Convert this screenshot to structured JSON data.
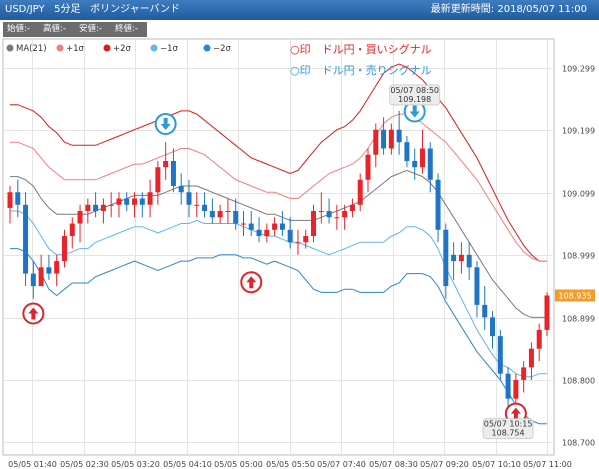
{
  "header": {
    "symbol": "USD/JPY",
    "interval": "5分足",
    "indicator": "ボリンジャーバンド",
    "updated_label": "最新更新時間:",
    "updated_value": "2018/05/07 11:00"
  },
  "quote": {
    "open_label": "始値:-",
    "high_label": "高値:-",
    "low_label": "安値:-",
    "close_label": "終値:-"
  },
  "colors": {
    "up": "#e8232a",
    "down": "#1f74c4",
    "ma": "#7a7a7a",
    "sigma1": "#f08080",
    "sigma2": "#dd1b1b",
    "minus1": "#62b4ec",
    "minus2": "#2f86d0",
    "buy": "#e0242c",
    "sell": "#2a9ad8",
    "price_tag": "#f39d28"
  },
  "notes": {
    "buy": "○印　ドル円・買いシグナル",
    "sell": "○印　ドル円・売りシグナル"
  },
  "chart_data": {
    "type": "candlestick",
    "legend": [
      "MA(21)",
      "+1σ",
      "+2σ",
      "−1σ",
      "−2σ"
    ],
    "ylim": [
      108.68,
      109.345
    ],
    "yticks": [
      108.7,
      108.8,
      108.899,
      108.999,
      109.099,
      109.199,
      109.299
    ],
    "ytick_labels": [
      "108.700",
      "108.800",
      "108.899",
      "108.999",
      "109.099",
      "109.199",
      "109.299"
    ],
    "xtick_labels": [
      "05/05 01:40",
      "05/05 02:30",
      "05/05 03:20",
      "05/05 04:10",
      "05/05 05:00",
      "05/05 05:50",
      "05/07 07:40",
      "05/07 08:30",
      "05/07 09:20",
      "05/07 10:10",
      "05/07 11:00"
    ],
    "last_price": "108.935",
    "candles": [
      [
        109.075,
        109.11,
        109.05,
        109.1
      ],
      [
        109.1,
        109.12,
        109.06,
        109.08
      ],
      [
        109.08,
        109.1,
        108.95,
        108.97
      ],
      [
        108.97,
        108.99,
        108.93,
        108.95
      ],
      [
        108.95,
        109.0,
        108.95,
        108.98
      ],
      [
        108.98,
        109.0,
        108.96,
        108.97
      ],
      [
        108.97,
        109.0,
        108.95,
        108.99
      ],
      [
        108.99,
        109.04,
        108.98,
        109.03
      ],
      [
        109.03,
        109.06,
        109.01,
        109.05
      ],
      [
        109.05,
        109.08,
        109.02,
        109.07
      ],
      [
        109.07,
        109.09,
        109.05,
        109.08
      ],
      [
        109.08,
        109.1,
        109.06,
        109.07
      ],
      [
        109.07,
        109.09,
        109.05,
        109.08
      ],
      [
        109.08,
        109.1,
        109.06,
        109.08
      ],
      [
        109.08,
        109.1,
        109.06,
        109.09
      ],
      [
        109.09,
        109.1,
        109.07,
        109.08
      ],
      [
        109.08,
        109.1,
        109.06,
        109.09
      ],
      [
        109.09,
        109.1,
        109.06,
        109.08
      ],
      [
        109.08,
        109.12,
        109.06,
        109.1
      ],
      [
        109.1,
        109.15,
        109.08,
        109.14
      ],
      [
        109.14,
        109.18,
        109.12,
        109.15
      ],
      [
        109.15,
        109.17,
        109.1,
        109.11
      ],
      [
        109.11,
        109.13,
        109.08,
        109.1
      ],
      [
        109.1,
        109.12,
        109.06,
        109.08
      ],
      [
        109.08,
        109.1,
        109.06,
        109.08
      ],
      [
        109.08,
        109.1,
        109.06,
        109.07
      ],
      [
        109.07,
        109.09,
        109.05,
        109.06
      ],
      [
        109.06,
        109.08,
        109.05,
        109.07
      ],
      [
        109.07,
        109.09,
        109.05,
        109.07
      ],
      [
        109.07,
        109.09,
        109.04,
        109.05
      ],
      [
        109.05,
        109.07,
        109.03,
        109.05
      ],
      [
        109.05,
        109.07,
        109.03,
        109.04
      ],
      [
        109.04,
        109.06,
        109.02,
        109.03
      ],
      [
        109.03,
        109.05,
        109.02,
        109.04
      ],
      [
        109.04,
        109.06,
        109.03,
        109.05
      ],
      [
        109.05,
        109.07,
        109.03,
        109.04
      ],
      [
        109.04,
        109.06,
        109.01,
        109.02
      ],
      [
        109.02,
        109.04,
        109.0,
        109.02
      ],
      [
        109.02,
        109.04,
        109.01,
        109.03
      ],
      [
        109.03,
        109.08,
        109.02,
        109.07
      ],
      [
        109.07,
        109.1,
        109.05,
        109.07
      ],
      [
        109.07,
        109.09,
        109.05,
        109.06
      ],
      [
        109.06,
        109.08,
        109.04,
        109.06
      ],
      [
        109.06,
        109.08,
        109.04,
        109.07
      ],
      [
        109.07,
        109.09,
        109.06,
        109.08
      ],
      [
        109.08,
        109.13,
        109.07,
        109.12
      ],
      [
        109.12,
        109.17,
        109.1,
        109.16
      ],
      [
        109.16,
        109.21,
        109.14,
        109.2
      ],
      [
        109.2,
        109.22,
        109.16,
        109.17
      ],
      [
        109.17,
        109.21,
        109.16,
        109.2
      ],
      [
        109.2,
        109.23,
        109.16,
        109.18
      ],
      [
        109.18,
        109.19,
        109.14,
        109.15
      ],
      [
        109.15,
        109.17,
        109.12,
        109.14
      ],
      [
        109.14,
        109.2,
        109.13,
        109.17
      ],
      [
        109.17,
        109.18,
        109.1,
        109.12
      ],
      [
        109.12,
        109.13,
        109.02,
        109.04
      ],
      [
        109.04,
        109.05,
        108.93,
        108.95
      ],
      [
        109.0,
        109.02,
        108.96,
        108.99
      ],
      [
        108.99,
        109.02,
        108.97,
        109.0
      ],
      [
        109.0,
        109.02,
        108.96,
        108.98
      ],
      [
        108.98,
        108.99,
        108.9,
        108.92
      ],
      [
        108.92,
        108.95,
        108.88,
        108.9
      ],
      [
        108.9,
        108.91,
        108.85,
        108.87
      ],
      [
        108.87,
        108.88,
        108.8,
        108.81
      ],
      [
        108.81,
        108.82,
        108.75,
        108.77
      ],
      [
        108.77,
        108.81,
        108.76,
        108.8
      ],
      [
        108.8,
        108.83,
        108.78,
        108.82
      ],
      [
        108.82,
        108.86,
        108.8,
        108.85
      ],
      [
        108.85,
        108.89,
        108.83,
        108.88
      ],
      [
        108.88,
        108.94,
        108.87,
        108.935
      ]
    ],
    "ma": [
      109.125,
      109.125,
      109.12,
      109.11,
      109.09,
      109.075,
      109.065,
      109.065,
      109.065,
      109.065,
      109.065,
      109.07,
      109.075,
      109.08,
      109.085,
      109.09,
      109.095,
      109.095,
      109.095,
      109.095,
      109.1,
      109.105,
      109.11,
      109.11,
      109.11,
      109.105,
      109.1,
      109.095,
      109.09,
      109.085,
      109.08,
      109.075,
      109.07,
      109.065,
      109.065,
      109.06,
      109.055,
      109.055,
      109.055,
      109.055,
      109.06,
      109.065,
      109.07,
      109.075,
      109.08,
      109.085,
      109.095,
      109.105,
      109.115,
      109.125,
      109.13,
      109.135,
      109.13,
      109.125,
      109.115,
      109.1,
      109.08,
      109.06,
      109.04,
      109.02,
      109.0,
      108.98,
      108.96,
      108.945,
      108.93,
      108.915,
      108.905,
      108.9,
      108.9,
      108.9
    ],
    "sigma1": [
      109.18,
      109.18,
      109.175,
      109.17,
      109.155,
      109.14,
      109.13,
      109.12,
      109.12,
      109.12,
      109.12,
      109.12,
      109.125,
      109.13,
      109.135,
      109.14,
      109.145,
      109.145,
      109.15,
      109.155,
      109.16,
      109.165,
      109.17,
      109.17,
      109.165,
      109.16,
      109.15,
      109.14,
      109.13,
      109.12,
      109.115,
      109.11,
      109.105,
      109.1,
      109.1,
      109.095,
      109.09,
      109.09,
      109.1,
      109.11,
      109.12,
      109.13,
      109.135,
      109.14,
      109.145,
      109.155,
      109.17,
      109.19,
      109.21,
      109.22,
      109.225,
      109.225,
      109.22,
      109.21,
      109.2,
      109.19,
      109.18,
      109.165,
      109.15,
      109.135,
      109.12,
      109.1,
      109.08,
      109.06,
      109.04,
      109.02,
      109.005,
      108.995,
      108.99,
      108.99
    ],
    "sigma2": [
      109.24,
      109.24,
      109.235,
      109.23,
      109.22,
      109.205,
      109.195,
      109.18,
      109.175,
      109.175,
      109.175,
      109.175,
      109.18,
      109.185,
      109.19,
      109.195,
      109.2,
      109.205,
      109.21,
      109.215,
      109.22,
      109.225,
      109.23,
      109.23,
      109.225,
      109.215,
      109.205,
      109.195,
      109.185,
      109.175,
      109.165,
      109.155,
      109.15,
      109.145,
      109.14,
      109.135,
      109.13,
      109.135,
      109.15,
      109.165,
      109.18,
      109.19,
      109.2,
      109.205,
      109.215,
      109.23,
      109.25,
      109.27,
      109.29,
      109.3,
      109.305,
      109.3,
      109.29,
      109.28,
      109.265,
      109.25,
      109.235,
      109.215,
      109.195,
      109.175,
      109.155,
      109.13,
      109.105,
      109.08,
      109.055,
      109.035,
      109.015,
      109.0,
      108.99,
      108.99
    ],
    "minus1": [
      109.07,
      109.07,
      109.065,
      109.05,
      109.03,
      109.01,
      109.0,
      109.0,
      109.005,
      109.01,
      109.01,
      109.02,
      109.025,
      109.03,
      109.035,
      109.04,
      109.045,
      109.045,
      109.04,
      109.035,
      109.04,
      109.045,
      109.05,
      109.05,
      109.055,
      109.05,
      109.05,
      109.05,
      109.05,
      109.05,
      109.045,
      109.04,
      109.035,
      109.03,
      109.03,
      109.025,
      109.02,
      109.02,
      109.015,
      109.01,
      109.005,
      109.0,
      109.005,
      109.01,
      109.015,
      109.02,
      109.02,
      109.02,
      109.02,
      109.03,
      109.035,
      109.045,
      109.045,
      109.04,
      109.03,
      109.01,
      108.98,
      108.955,
      108.93,
      108.905,
      108.88,
      108.86,
      108.84,
      108.825,
      108.82,
      108.81,
      108.805,
      108.805,
      108.81,
      108.81
    ],
    "minus2": [
      109.01,
      109.01,
      109.005,
      108.99,
      108.97,
      108.945,
      108.935,
      108.945,
      108.955,
      108.955,
      108.955,
      108.965,
      108.97,
      108.975,
      108.98,
      108.985,
      108.99,
      108.985,
      108.98,
      108.975,
      108.98,
      108.985,
      108.99,
      108.99,
      108.995,
      108.995,
      108.995,
      109.0,
      109.0,
      109.0,
      108.995,
      108.995,
      108.99,
      108.985,
      108.99,
      108.985,
      108.98,
      108.975,
      108.96,
      108.945,
      108.94,
      108.94,
      108.94,
      108.945,
      108.945,
      108.94,
      108.94,
      108.94,
      108.94,
      108.95,
      108.955,
      108.97,
      108.97,
      108.97,
      108.965,
      108.95,
      108.925,
      108.905,
      108.885,
      108.865,
      108.845,
      108.83,
      108.815,
      108.8,
      108.78,
      108.76,
      108.745,
      108.735,
      108.73,
      108.73
    ],
    "buy_signals": [
      {
        "index": 3,
        "price": 108.935
      },
      {
        "index": 31,
        "price": 108.985
      },
      {
        "index": 65,
        "price": 108.775
      }
    ],
    "sell_signals": [
      {
        "index": 20,
        "price": 109.19
      },
      {
        "index": 52,
        "price": 109.21
      }
    ],
    "annotations": [
      {
        "index": 52,
        "price": 109.198,
        "time": "05/07 08:50",
        "value": "109.198"
      },
      {
        "index": 64,
        "price": 108.754,
        "time": "05/07 10:15",
        "value": "108.754"
      }
    ]
  }
}
